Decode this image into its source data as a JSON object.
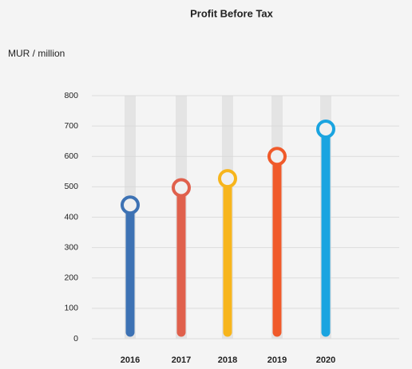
{
  "chart_data": {
    "type": "lollipop",
    "title": "Profit Before Tax",
    "y_label": "MUR / million",
    "categories": [
      "2016",
      "2017",
      "2018",
      "2019",
      "2020"
    ],
    "values": [
      440,
      497,
      527,
      600,
      690
    ],
    "colors": [
      "#3d72b4",
      "#e0604c",
      "#f7b51c",
      "#f05a2a",
      "#1aa4e0"
    ],
    "ylim": [
      0,
      800
    ],
    "yticks": [
      0,
      100,
      200,
      300,
      400,
      500,
      600,
      700,
      800
    ],
    "grid": true
  }
}
